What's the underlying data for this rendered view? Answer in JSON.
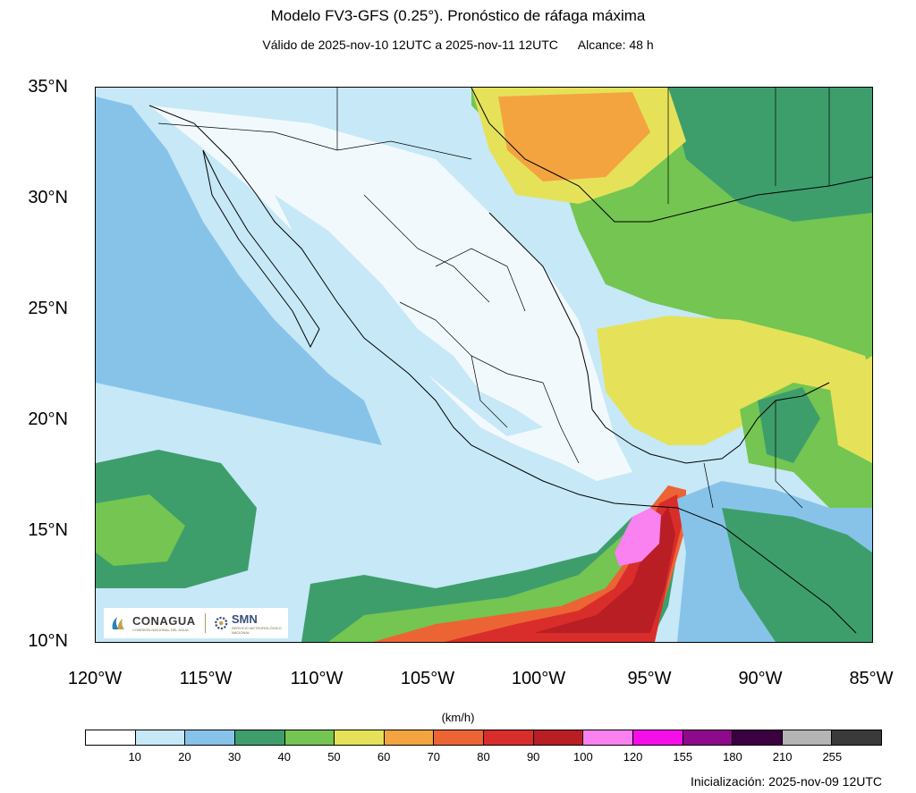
{
  "title": "Modelo FV3-GFS (0.25°). Pronóstico de ráfaga máxima",
  "valid": "Válido de 2025-nov-10 12UTC a 2025-nov-11 12UTC",
  "range": "Alcance: 48 h",
  "lat_labels": [
    "35°N",
    "30°N",
    "25°N",
    "20°N",
    "15°N",
    "10°N"
  ],
  "lon_labels": [
    "120°W",
    "115°W",
    "110°W",
    "105°W",
    "100°W",
    "95°W",
    "90°W",
    "85°W"
  ],
  "units": "(km/h)",
  "colorbar": {
    "colors": [
      "#ffffff",
      "#c6e8f7",
      "#87c3e9",
      "#3d9e6c",
      "#74c551",
      "#e5e259",
      "#f4a43f",
      "#ec6434",
      "#d92d2b",
      "#b81e23",
      "#f981f0",
      "#f50ee9",
      "#8d0a8a",
      "#3a0040",
      "#b4b4b4",
      "#3a3a3a"
    ],
    "ticks": [
      "10",
      "20",
      "30",
      "40",
      "50",
      "60",
      "70",
      "80",
      "90",
      "100",
      "120",
      "155",
      "180",
      "210",
      "255"
    ]
  },
  "init": "Inicialización: 2025-nov-09 12UTC",
  "logos": {
    "conagua": "CONAGUA",
    "conagua_sub": "COMISIÓN NACIONAL DEL AGUA",
    "smn": "SMN",
    "smn_sub": "SERVICIO METEOROLÓGICO NACIONAL"
  },
  "map_extent": {
    "lon": [
      -120,
      -85
    ],
    "lat": [
      10,
      35
    ]
  }
}
